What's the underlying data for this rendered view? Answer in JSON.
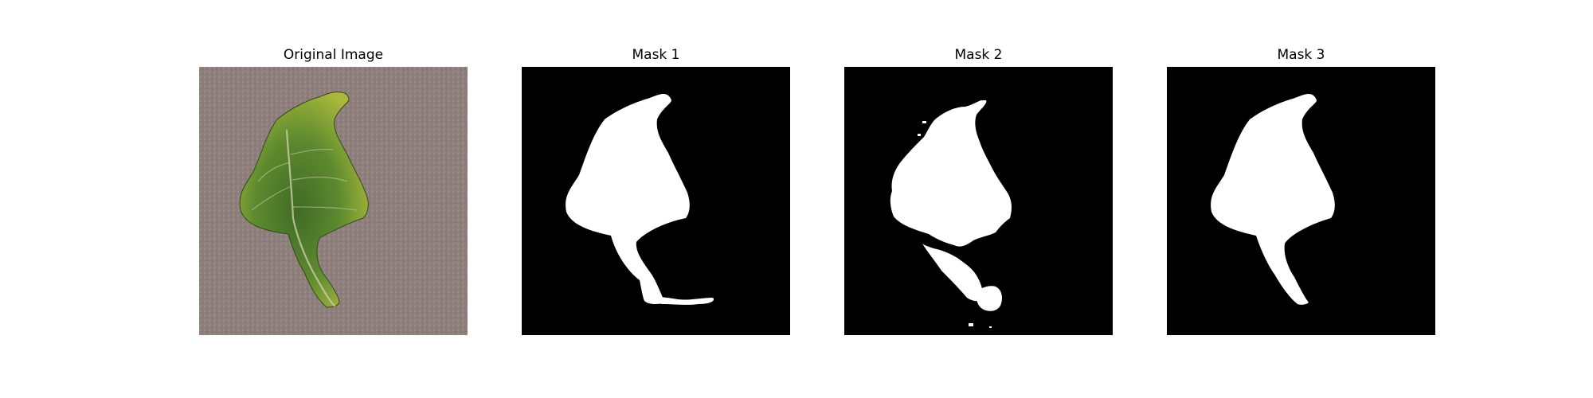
{
  "figure": {
    "panels": [
      {
        "title": "Original Image"
      },
      {
        "title": "Mask 1"
      },
      {
        "title": "Mask 2"
      },
      {
        "title": "Mask 3"
      }
    ]
  },
  "colors": {
    "background": "#ffffff",
    "mask_foreground": "#ffffff",
    "mask_background": "#000000",
    "carpet": "#8e7d7a",
    "leaf": "#4d7a2a",
    "leaf_highlight": "#9cb33a",
    "stem": "#3f5e25"
  }
}
